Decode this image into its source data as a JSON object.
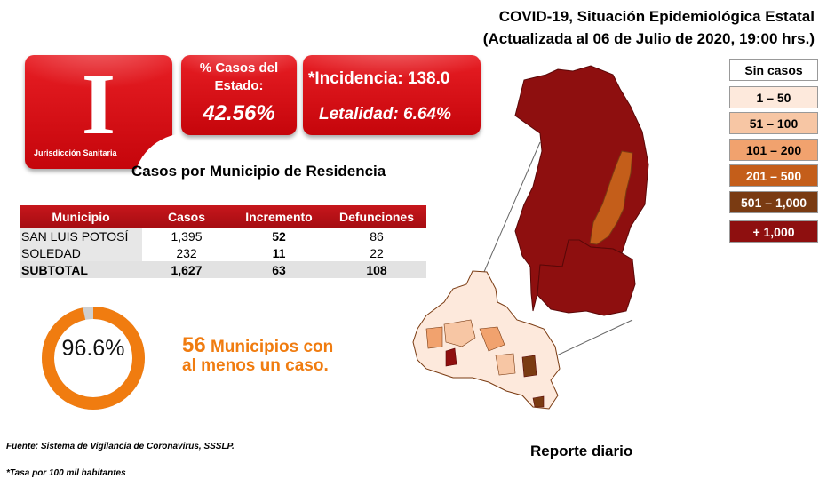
{
  "header": {
    "line1": "COVID-19, Situación Epidemiológica Estatal",
    "line2": "(Actualizada al 06 de Julio de 2020, 19:00 hrs.)"
  },
  "jurisdiction": {
    "letter": "I",
    "label": "Jurisdicción Sanitaria"
  },
  "state_share": {
    "label": "% Casos del Estado:",
    "value": "42.56%"
  },
  "incidence": {
    "text": "*Incidencia: 138.0",
    "letalidad": "Letalidad: 6.64%"
  },
  "section_title": "Casos por Municipio  de Residencia",
  "table": {
    "headers": [
      "Municipio",
      "Casos",
      "Incremento",
      "Defunciones"
    ],
    "rows": [
      [
        "SAN LUIS POTOSÍ",
        "1,395",
        "52",
        "86"
      ],
      [
        "SOLEDAD",
        "232",
        "11",
        "22"
      ]
    ],
    "subtotal": [
      "SUBTOTAL",
      "1,627",
      "63",
      "108"
    ]
  },
  "coverage": {
    "percent_text": "96.6%",
    "percent": 96.6,
    "count": "56",
    "line1_rest": " Municipios con",
    "line2": "al menos un caso."
  },
  "footer": {
    "fuente": "Fuente: Sistema de Vigilancia  de Coronavirus, SSSLP.",
    "tasa": "*Tasa por 100 mil habitantes",
    "reporte": "Reporte diario"
  },
  "legend": [
    {
      "label": "Sin casos",
      "color": "#ffffff",
      "text_color": "#000000"
    },
    {
      "label": "1 – 50",
      "color": "#fde9dc",
      "text_color": "#000000"
    },
    {
      "label": "51 – 100",
      "color": "#f7c6a4",
      "text_color": "#000000"
    },
    {
      "label": "101 – 200",
      "color": "#f1a26e",
      "text_color": "#000000"
    },
    {
      "label": "201 – 500",
      "color": "#c45e1a",
      "text_color": "#ffffff"
    },
    {
      "label": "501 – 1,000",
      "color": "#7a3b12",
      "text_color": "#ffffff"
    },
    {
      "label": "+ 1,000",
      "color": "#8e0f0f",
      "text_color": "#ffffff"
    }
  ],
  "colors": {
    "accent_red": "#d7141a",
    "orange": "#f07c10",
    "dark_red": "#8e0f0f"
  }
}
